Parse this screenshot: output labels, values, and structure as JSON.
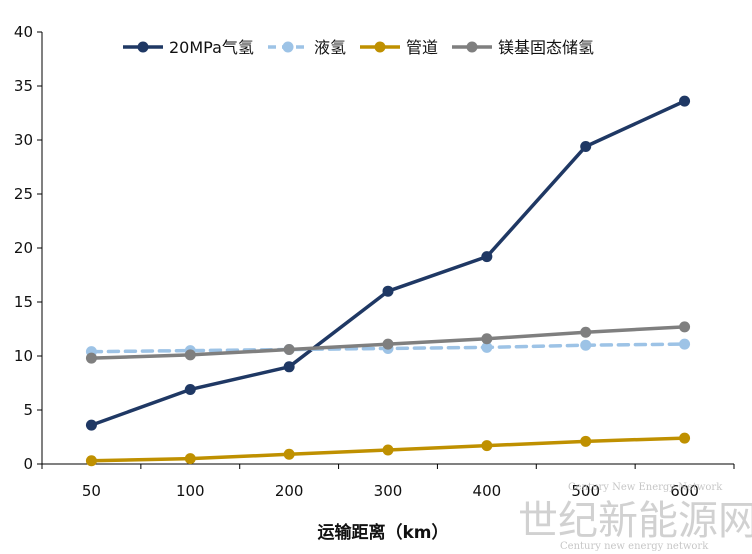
{
  "chart_data": {
    "type": "line",
    "xlabel": "运输距离（km）",
    "ylabel": "",
    "categories": [
      "50",
      "100",
      "200",
      "300",
      "400",
      "500",
      "600"
    ],
    "ylim": [
      0,
      40
    ],
    "yticks": [
      "0",
      "5",
      "10",
      "15",
      "20",
      "25",
      "30",
      "35",
      "40"
    ],
    "grid": false,
    "legend_position": "top",
    "series": [
      {
        "name": "20MPa气氢",
        "values": [
          3.6,
          6.9,
          9.0,
          16.0,
          19.2,
          29.4,
          33.6
        ],
        "color": "#1f3864",
        "dashed": false
      },
      {
        "name": "液氢",
        "values": [
          10.4,
          10.5,
          10.6,
          10.7,
          10.8,
          11.0,
          11.1
        ],
        "color": "#9dc3e6",
        "dashed": true
      },
      {
        "name": "管道",
        "values": [
          0.3,
          0.5,
          0.9,
          1.3,
          1.7,
          2.1,
          2.4
        ],
        "color": "#bf9000",
        "dashed": false
      },
      {
        "name": "镁基固态储氢",
        "values": [
          9.8,
          10.1,
          10.6,
          11.1,
          11.6,
          12.2,
          12.7
        ],
        "color": "#7f7f7f",
        "dashed": false
      }
    ]
  },
  "watermark": {
    "main": "世纪新能源网",
    "sub": "Century new energy network",
    "tiny": "Century New Energy Network"
  }
}
